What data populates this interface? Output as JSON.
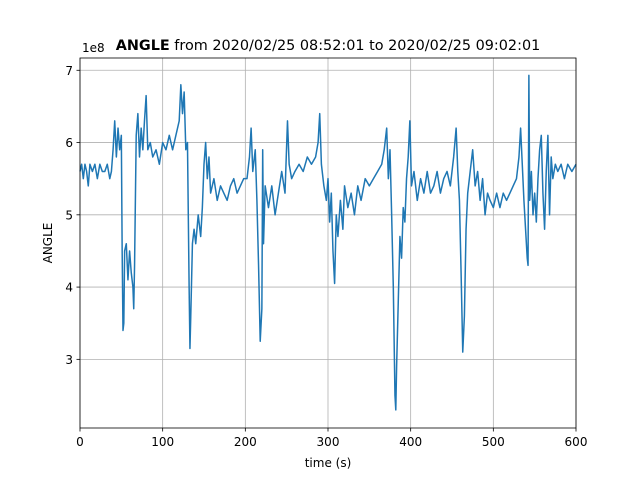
{
  "chart_data": {
    "type": "line",
    "title_variable": "ANGLE",
    "title_range": "from 2020/02/25 08:52:01 to 2020/02/25 09:02:01",
    "offset_text": "1e8",
    "x_label": "time (s)",
    "y_label": "ANGLE",
    "xlim": [
      0,
      600
    ],
    "xticks": [
      0,
      100,
      200,
      300,
      400,
      500,
      600
    ],
    "ylim": [
      2.05,
      7.17
    ],
    "yticks": [
      3,
      4,
      5,
      6,
      7
    ],
    "grid": true,
    "series": [
      {
        "color": "#1f77b4",
        "x": [
          0,
          2,
          4,
          6,
          8,
          10,
          12,
          15,
          18,
          21,
          24,
          27,
          30,
          33,
          36,
          38,
          40,
          42,
          44,
          46,
          48,
          50,
          51,
          52,
          53,
          54,
          56,
          58,
          60,
          62,
          64,
          65,
          66,
          68,
          70,
          72,
          74,
          76,
          78,
          80,
          82,
          85,
          88,
          92,
          96,
          100,
          104,
          108,
          112,
          116,
          120,
          122,
          124,
          126,
          128,
          130,
          132,
          133,
          134,
          136,
          138,
          140,
          143,
          146,
          148,
          150,
          152,
          154,
          156,
          158,
          162,
          166,
          170,
          174,
          178,
          182,
          186,
          190,
          194,
          198,
          202,
          205,
          207,
          209,
          212,
          214,
          216,
          218,
          220,
          221,
          222,
          224,
          228,
          232,
          236,
          240,
          244,
          248,
          251,
          253,
          256,
          260,
          265,
          270,
          275,
          280,
          285,
          288,
          290,
          292,
          295,
          298,
          300,
          302,
          304,
          306,
          308,
          310,
          312,
          315,
          318,
          320,
          324,
          328,
          332,
          336,
          340,
          345,
          350,
          355,
          360,
          365,
          368,
          371,
          373,
          375,
          377,
          379,
          381,
          382,
          383,
          385,
          387,
          389,
          391,
          393,
          395,
          397,
          399,
          401,
          404,
          408,
          412,
          416,
          420,
          424,
          428,
          432,
          436,
          440,
          444,
          448,
          452,
          455,
          457,
          459,
          461,
          463,
          465,
          467,
          469,
          472,
          475,
          478,
          481,
          484,
          487,
          490,
          493,
          496,
          500,
          504,
          508,
          512,
          516,
          520,
          524,
          528,
          531,
          533,
          535,
          537,
          539,
          541,
          542,
          543,
          544,
          546,
          548,
          550,
          552,
          554,
          556,
          558,
          560,
          562,
          564,
          566,
          568,
          570,
          572,
          575,
          578,
          582,
          586,
          590,
          595,
          600
        ],
        "values": [
          5.6,
          5.7,
          5.5,
          5.7,
          5.6,
          5.4,
          5.7,
          5.6,
          5.7,
          5.5,
          5.7,
          5.6,
          5.6,
          5.7,
          5.5,
          5.6,
          5.9,
          6.3,
          5.8,
          6.2,
          5.9,
          6.1,
          4.5,
          3.4,
          3.5,
          4.5,
          4.6,
          4.1,
          4.5,
          4.2,
          4.0,
          3.7,
          4.3,
          6.1,
          6.4,
          5.8,
          6.2,
          5.9,
          6.3,
          6.65,
          5.9,
          6.0,
          5.8,
          5.9,
          5.7,
          6.0,
          5.9,
          6.1,
          5.9,
          6.1,
          6.3,
          6.8,
          6.4,
          6.7,
          5.9,
          6.0,
          4.0,
          3.15,
          3.6,
          4.6,
          4.8,
          4.6,
          5.0,
          4.7,
          5.1,
          5.7,
          6.0,
          5.5,
          5.8,
          5.3,
          5.5,
          5.2,
          5.4,
          5.3,
          5.2,
          5.4,
          5.5,
          5.3,
          5.4,
          5.5,
          5.5,
          5.8,
          6.2,
          5.6,
          5.9,
          5.2,
          4.3,
          3.25,
          3.7,
          5.9,
          4.6,
          5.4,
          5.1,
          5.4,
          5.0,
          5.3,
          5.6,
          5.3,
          6.3,
          5.7,
          5.5,
          5.6,
          5.7,
          5.6,
          5.8,
          5.7,
          5.8,
          6.0,
          6.4,
          5.7,
          5.4,
          5.2,
          5.5,
          4.9,
          5.3,
          4.5,
          4.05,
          5.0,
          4.7,
          5.2,
          4.8,
          5.4,
          5.1,
          5.3,
          5.0,
          5.4,
          5.2,
          5.5,
          5.4,
          5.5,
          5.6,
          5.7,
          5.9,
          6.2,
          5.5,
          5.9,
          5.0,
          4.0,
          2.5,
          2.3,
          2.9,
          3.8,
          4.7,
          4.4,
          5.1,
          4.9,
          5.5,
          5.8,
          6.3,
          5.4,
          5.6,
          5.2,
          5.5,
          5.3,
          5.6,
          5.3,
          5.4,
          5.6,
          5.3,
          5.5,
          5.6,
          5.4,
          5.8,
          6.2,
          5.6,
          5.2,
          4.2,
          3.1,
          3.6,
          4.8,
          5.3,
          5.6,
          5.9,
          5.4,
          5.6,
          5.2,
          5.5,
          5.0,
          5.3,
          5.2,
          5.1,
          5.3,
          5.1,
          5.3,
          5.2,
          5.3,
          5.4,
          5.5,
          5.8,
          6.2,
          5.7,
          5.2,
          4.8,
          4.4,
          4.3,
          6.93,
          5.2,
          5.6,
          5.0,
          5.3,
          4.9,
          5.5,
          5.9,
          6.1,
          5.3,
          4.8,
          5.6,
          6.1,
          5.0,
          5.8,
          5.5,
          5.7,
          5.6,
          5.7,
          5.5,
          5.7,
          5.6,
          5.7
        ]
      }
    ]
  }
}
